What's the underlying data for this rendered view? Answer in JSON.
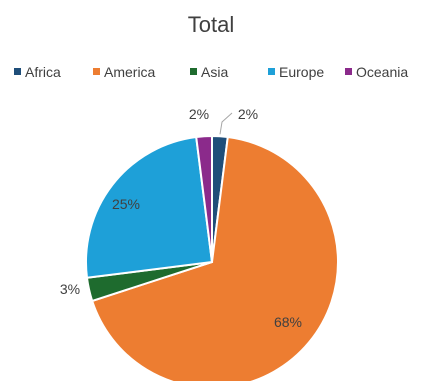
{
  "chart_data": {
    "type": "pie",
    "title": "Total",
    "categories": [
      "Africa",
      "America",
      "Asia",
      "Europe",
      "Oceania"
    ],
    "values": [
      2,
      68,
      3,
      25,
      2
    ],
    "labels": [
      "2%",
      "68%",
      "3%",
      "25%",
      "2%"
    ],
    "colors": [
      "#1f4e79",
      "#ed7d31",
      "#1e6b2e",
      "#1ea0d8",
      "#8b2a8b"
    ],
    "legend_position": "top"
  }
}
